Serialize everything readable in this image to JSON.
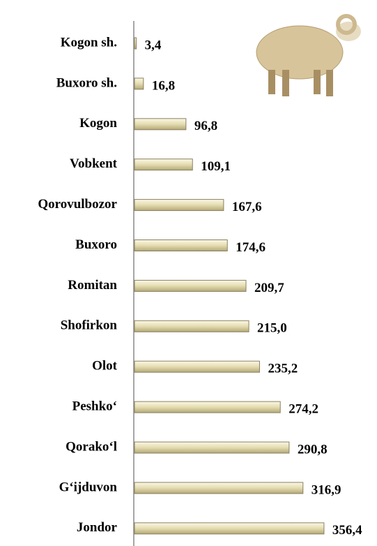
{
  "chart_data": {
    "type": "bar",
    "orientation": "horizontal",
    "categories": [
      "Kogon sh.",
      "Buxoro sh.",
      "Kogon",
      "Vobkent",
      "Qorovulbozor",
      "Buxoro",
      "Romitan",
      "Shofirkon",
      "Olot",
      "Peshko‘",
      "Qorako‘l",
      "G‘ijduvon",
      "Jondor"
    ],
    "values": [
      3.4,
      16.8,
      96.8,
      109.1,
      167.6,
      174.6,
      209.7,
      215.0,
      235.2,
      274.2,
      290.8,
      316.9,
      356.4
    ],
    "value_labels": [
      "3,4",
      "16,8",
      "96,8",
      "109,1",
      "167,6",
      "174,6",
      "209,7",
      "215,0",
      "235,2",
      "274,2",
      "290,8",
      "316,9",
      "356,4"
    ],
    "color": "#e4dcb0"
  }
}
